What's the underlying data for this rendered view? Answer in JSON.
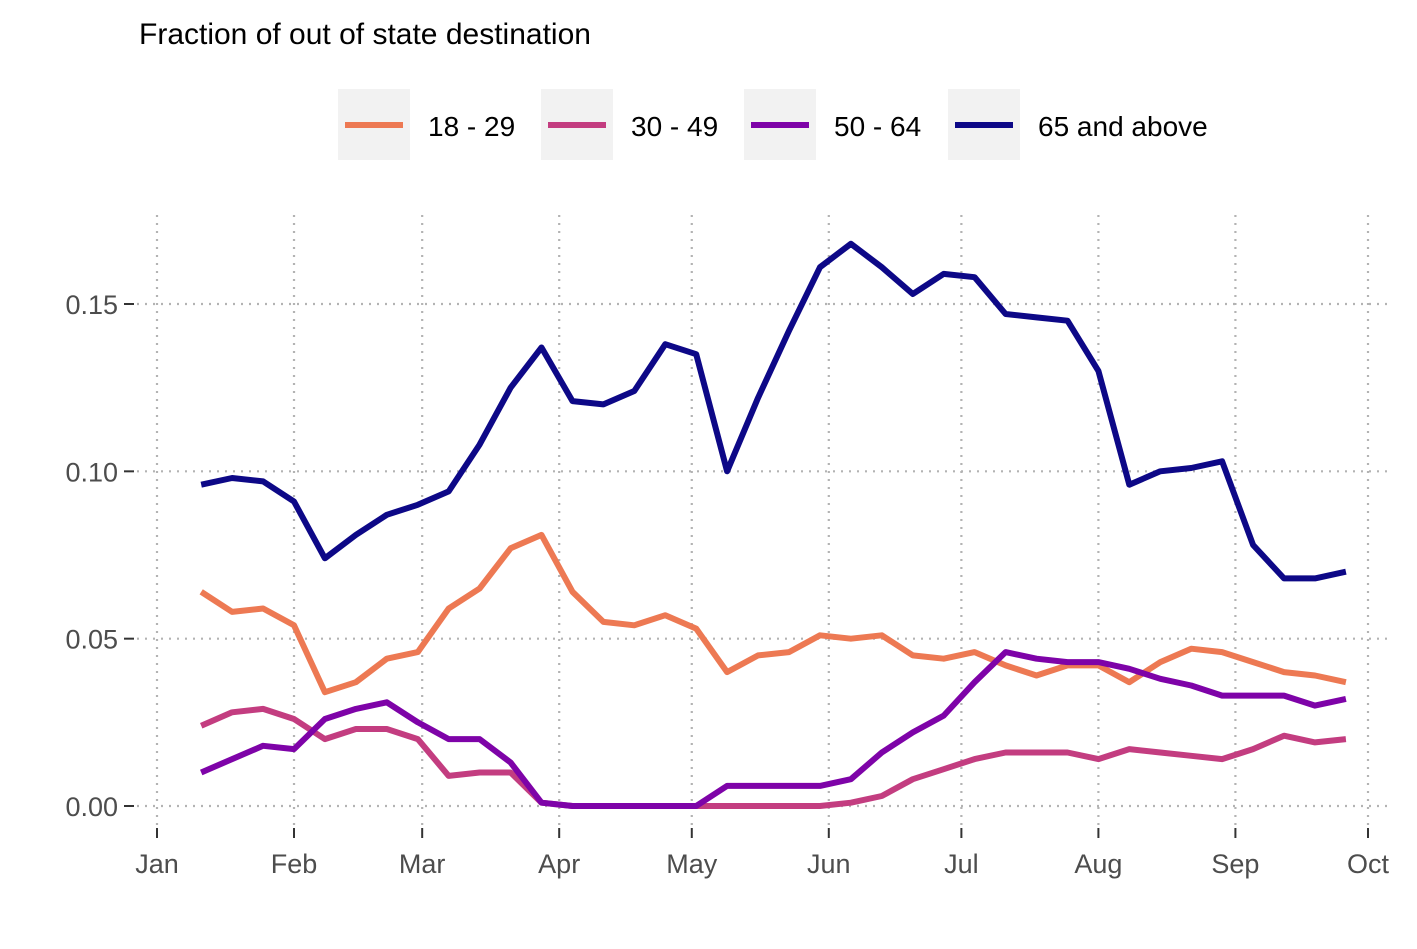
{
  "chart_data": {
    "type": "line",
    "title": "Fraction of out of state destination",
    "xlabel": "",
    "ylabel": "",
    "x_ticks": [
      "Jan",
      "Feb",
      "Mar",
      "Apr",
      "May",
      "Jun",
      "Jul",
      "Aug",
      "Sep",
      "Oct"
    ],
    "x_tick_dates": [
      "2020-01-01",
      "2020-02-01",
      "2020-03-01",
      "2020-04-01",
      "2020-05-01",
      "2020-06-01",
      "2020-07-01",
      "2020-08-01",
      "2020-09-01",
      "2020-10-01"
    ],
    "y_ticks": [
      "0.00",
      "0.05",
      "0.10",
      "0.15"
    ],
    "y_tick_values": [
      0.0,
      0.05,
      0.1,
      0.15
    ],
    "xlim": [
      "2020-01-01",
      "2020-10-01"
    ],
    "ylim": [
      0.0,
      0.175
    ],
    "grid": true,
    "legend_position": "top",
    "x": [
      "2020-01-11",
      "2020-01-18",
      "2020-01-25",
      "2020-02-01",
      "2020-02-08",
      "2020-02-15",
      "2020-02-22",
      "2020-02-29",
      "2020-03-07",
      "2020-03-14",
      "2020-03-21",
      "2020-03-28",
      "2020-04-04",
      "2020-04-11",
      "2020-04-18",
      "2020-04-25",
      "2020-05-02",
      "2020-05-09",
      "2020-05-16",
      "2020-05-23",
      "2020-05-30",
      "2020-06-06",
      "2020-06-13",
      "2020-06-20",
      "2020-06-27",
      "2020-07-04",
      "2020-07-11",
      "2020-07-18",
      "2020-07-25",
      "2020-08-01",
      "2020-08-08",
      "2020-08-15",
      "2020-08-22",
      "2020-08-29",
      "2020-09-05",
      "2020-09-12",
      "2020-09-19",
      "2020-09-26"
    ],
    "series": [
      {
        "name": "18 - 29",
        "color": "#ed7953",
        "values": [
          0.064,
          0.058,
          0.059,
          0.054,
          0.034,
          0.037,
          0.044,
          0.046,
          0.059,
          0.065,
          0.077,
          0.081,
          0.064,
          0.055,
          0.054,
          0.057,
          0.053,
          0.04,
          0.045,
          0.046,
          0.051,
          0.05,
          0.051,
          0.045,
          0.044,
          0.046,
          0.042,
          0.039,
          0.042,
          0.042,
          0.037,
          0.043,
          0.047,
          0.046,
          0.043,
          0.04,
          0.039,
          0.037
        ]
      },
      {
        "name": "30 - 49",
        "color": "#c33d80",
        "values": [
          0.024,
          0.028,
          0.029,
          0.026,
          0.02,
          0.023,
          0.023,
          0.02,
          0.009,
          0.01,
          0.01,
          0.001,
          0.0,
          0.0,
          0.0,
          0.0,
          0.0,
          0.0,
          0.0,
          0.0,
          0.0,
          0.001,
          0.003,
          0.008,
          0.011,
          0.014,
          0.016,
          0.016,
          0.016,
          0.014,
          0.017,
          0.016,
          0.015,
          0.014,
          0.017,
          0.021,
          0.019,
          0.02
        ]
      },
      {
        "name": "50 - 64",
        "color": "#7e03a8",
        "values": [
          0.01,
          0.014,
          0.018,
          0.017,
          0.026,
          0.029,
          0.031,
          0.025,
          0.02,
          0.02,
          0.013,
          0.001,
          0.0,
          0.0,
          0.0,
          0.0,
          0.0,
          0.006,
          0.006,
          0.006,
          0.006,
          0.008,
          0.016,
          0.022,
          0.027,
          0.037,
          0.046,
          0.044,
          0.043,
          0.043,
          0.041,
          0.038,
          0.036,
          0.033,
          0.033,
          0.033,
          0.03,
          0.032
        ]
      },
      {
        "name": "65 and above",
        "color": "#0d0887",
        "values": [
          0.096,
          0.098,
          0.097,
          0.091,
          0.074,
          0.081,
          0.087,
          0.09,
          0.094,
          0.108,
          0.125,
          0.137,
          0.121,
          0.12,
          0.124,
          0.138,
          0.135,
          0.1,
          0.122,
          0.142,
          0.161,
          0.168,
          0.161,
          0.153,
          0.159,
          0.158,
          0.147,
          0.146,
          0.145,
          0.13,
          0.096,
          0.1,
          0.101,
          0.103,
          0.078,
          0.068,
          0.068,
          0.07
        ]
      }
    ]
  }
}
